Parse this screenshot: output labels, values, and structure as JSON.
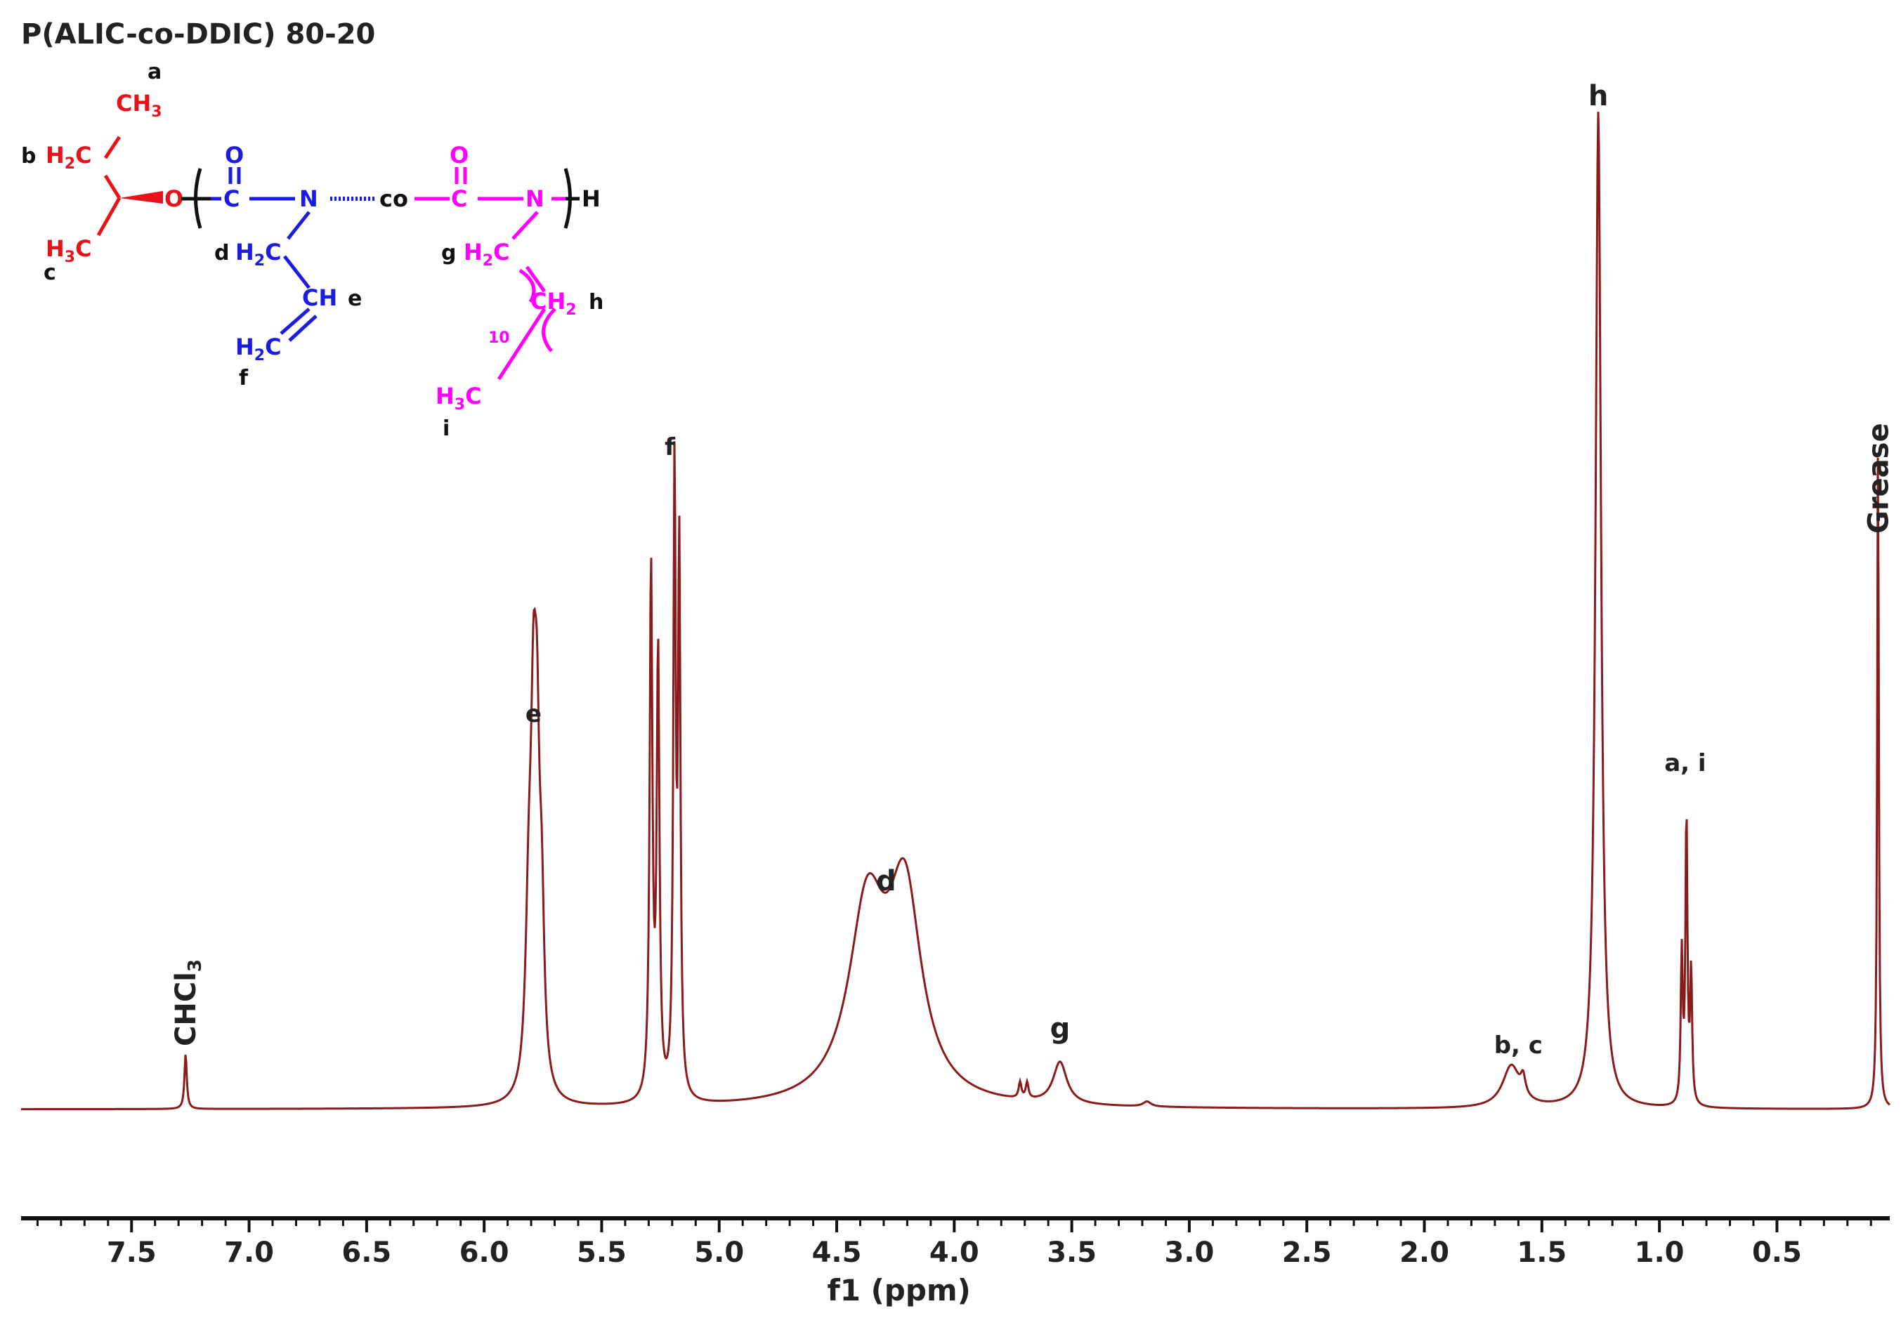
{
  "chart_data": {
    "type": "line",
    "title": "P(ALIC-co-DDIC) 80-20",
    "xlabel": "f1 (ppm)",
    "ylabel": "",
    "xlim": [
      7.97,
      0.02
    ],
    "ylim": [
      0,
      1.0
    ],
    "x_reversed": true,
    "grid": false,
    "x_ticks": [
      7.5,
      7.0,
      6.5,
      6.0,
      5.5,
      5.0,
      4.5,
      4.0,
      3.5,
      3.0,
      2.5,
      2.0,
      1.5,
      1.0,
      0.5
    ],
    "x_tick_labels": [
      "7.5",
      "7.0",
      "6.5",
      "6.0",
      "5.5",
      "5.0",
      "4.5",
      "4.0",
      "3.5",
      "3.0",
      "2.5",
      "2.0",
      "1.5",
      "1.0",
      "0.5"
    ],
    "line_color": "#8b1a1a",
    "series": [
      {
        "peaks": [
          {
            "ppm": 7.27,
            "height": 0.055,
            "width": 0.006
          },
          {
            "ppm": 5.81,
            "height": 0.16,
            "width": 0.016
          },
          {
            "ppm": 5.79,
            "height": 0.3,
            "width": 0.014
          },
          {
            "ppm": 5.775,
            "height": 0.26,
            "width": 0.013
          },
          {
            "ppm": 5.755,
            "height": 0.15,
            "width": 0.013
          },
          {
            "ppm": 5.29,
            "height": 0.53,
            "width": 0.007
          },
          {
            "ppm": 5.26,
            "height": 0.44,
            "width": 0.007
          },
          {
            "ppm": 5.19,
            "height": 0.62,
            "width": 0.006
          },
          {
            "ppm": 5.17,
            "height": 0.54,
            "width": 0.006
          },
          {
            "ppm": 4.37,
            "height": 0.19,
            "width": 0.095
          },
          {
            "ppm": 4.21,
            "height": 0.2,
            "width": 0.085
          },
          {
            "ppm": 3.72,
            "height": 0.016,
            "width": 0.007
          },
          {
            "ppm": 3.69,
            "height": 0.016,
            "width": 0.007
          },
          {
            "ppm": 3.55,
            "height": 0.042,
            "width": 0.035
          },
          {
            "ppm": 3.18,
            "height": 0.005,
            "width": 0.02
          },
          {
            "ppm": 1.63,
            "height": 0.042,
            "width": 0.045
          },
          {
            "ppm": 1.58,
            "height": 0.018,
            "width": 0.012
          },
          {
            "ppm": 1.26,
            "height": 1.0,
            "width": 0.014
          },
          {
            "ppm": 0.905,
            "height": 0.15,
            "width": 0.005
          },
          {
            "ppm": 0.885,
            "height": 0.29,
            "width": 0.005
          },
          {
            "ppm": 0.865,
            "height": 0.13,
            "width": 0.005
          },
          {
            "ppm": 0.07,
            "height": 0.68,
            "width": 0.004
          }
        ]
      }
    ],
    "annotations": [
      {
        "label": "CHCl3",
        "ppm": 7.27,
        "orientation": "vertical"
      },
      {
        "label": "e",
        "ppm": 5.79
      },
      {
        "label": "f",
        "ppm": 5.21
      },
      {
        "label": "d",
        "ppm": 4.29
      },
      {
        "label": "g",
        "ppm": 3.55
      },
      {
        "label": "b, c",
        "ppm": 1.6
      },
      {
        "label": "h",
        "ppm": 1.26
      },
      {
        "label": "a, i",
        "ppm": 0.89
      },
      {
        "label": "Grease",
        "ppm": 0.07,
        "orientation": "vertical"
      }
    ]
  },
  "structure": {
    "colors": {
      "alic": "#e8131a",
      "carbamate": "#1c1ce0",
      "ddic": "#ff00ff",
      "link": "#111111"
    },
    "labels": {
      "a": "a",
      "b": "b",
      "c": "c",
      "d": "d",
      "e": "e",
      "f": "f",
      "g": "g",
      "h": "h",
      "i": "i"
    },
    "atoms": {
      "ch3_top": "CH",
      "h2c_b": "H",
      "h3c_c": "H",
      "o_ether": "O",
      "o_left": "O",
      "c_left": "C",
      "n_left": "N",
      "co": "co",
      "o_right": "O",
      "c_right": "C",
      "n_right": "N",
      "h_end": "H",
      "h2c_d": "H",
      "ch_e": "CH",
      "h2c_f": "H",
      "h2c_g": "H",
      "ch2_h": "CH",
      "h3c_i": "H",
      "repeat": "10"
    }
  }
}
